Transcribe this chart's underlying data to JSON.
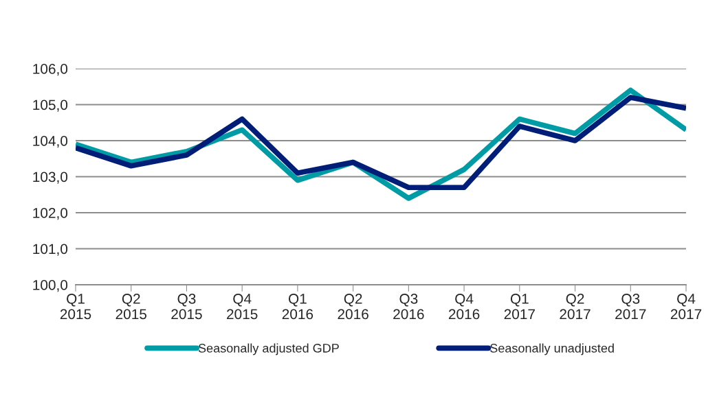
{
  "chart_data": {
    "type": "line",
    "categories": [
      "Q1\n2015",
      "Q2\n2015",
      "Q3\n2015",
      "Q4\n2015",
      "Q1\n2016",
      "Q2\n2016",
      "Q3\n2016",
      "Q4\n2016",
      "Q1\n2017",
      "Q2\n2017",
      "Q3\n2017",
      "Q4\n2017"
    ],
    "series": [
      {
        "name": "Seasonally adjusted GDP",
        "color": "#009ca6",
        "values": [
          103.9,
          103.4,
          103.7,
          104.3,
          102.9,
          103.4,
          102.4,
          103.2,
          104.6,
          104.2,
          105.4,
          104.3
        ]
      },
      {
        "name": "Seasonally unadjusted",
        "color": "#001e78",
        "values": [
          103.8,
          103.3,
          103.6,
          104.6,
          103.1,
          103.4,
          102.7,
          102.7,
          104.4,
          104.0,
          105.2,
          104.9
        ]
      }
    ],
    "ylim": [
      100,
      106
    ],
    "yticks": [
      {
        "value": 100,
        "label": "100,0"
      },
      {
        "value": 101,
        "label": "101,0"
      },
      {
        "value": 102,
        "label": "102,0"
      },
      {
        "value": 103,
        "label": "103,0"
      },
      {
        "value": 104,
        "label": "104,0"
      },
      {
        "value": 105,
        "label": "105,0"
      },
      {
        "value": 106,
        "label": "106,0"
      }
    ],
    "grid": "y",
    "legend": "bottom",
    "line_style": "solid",
    "marker": "none"
  }
}
